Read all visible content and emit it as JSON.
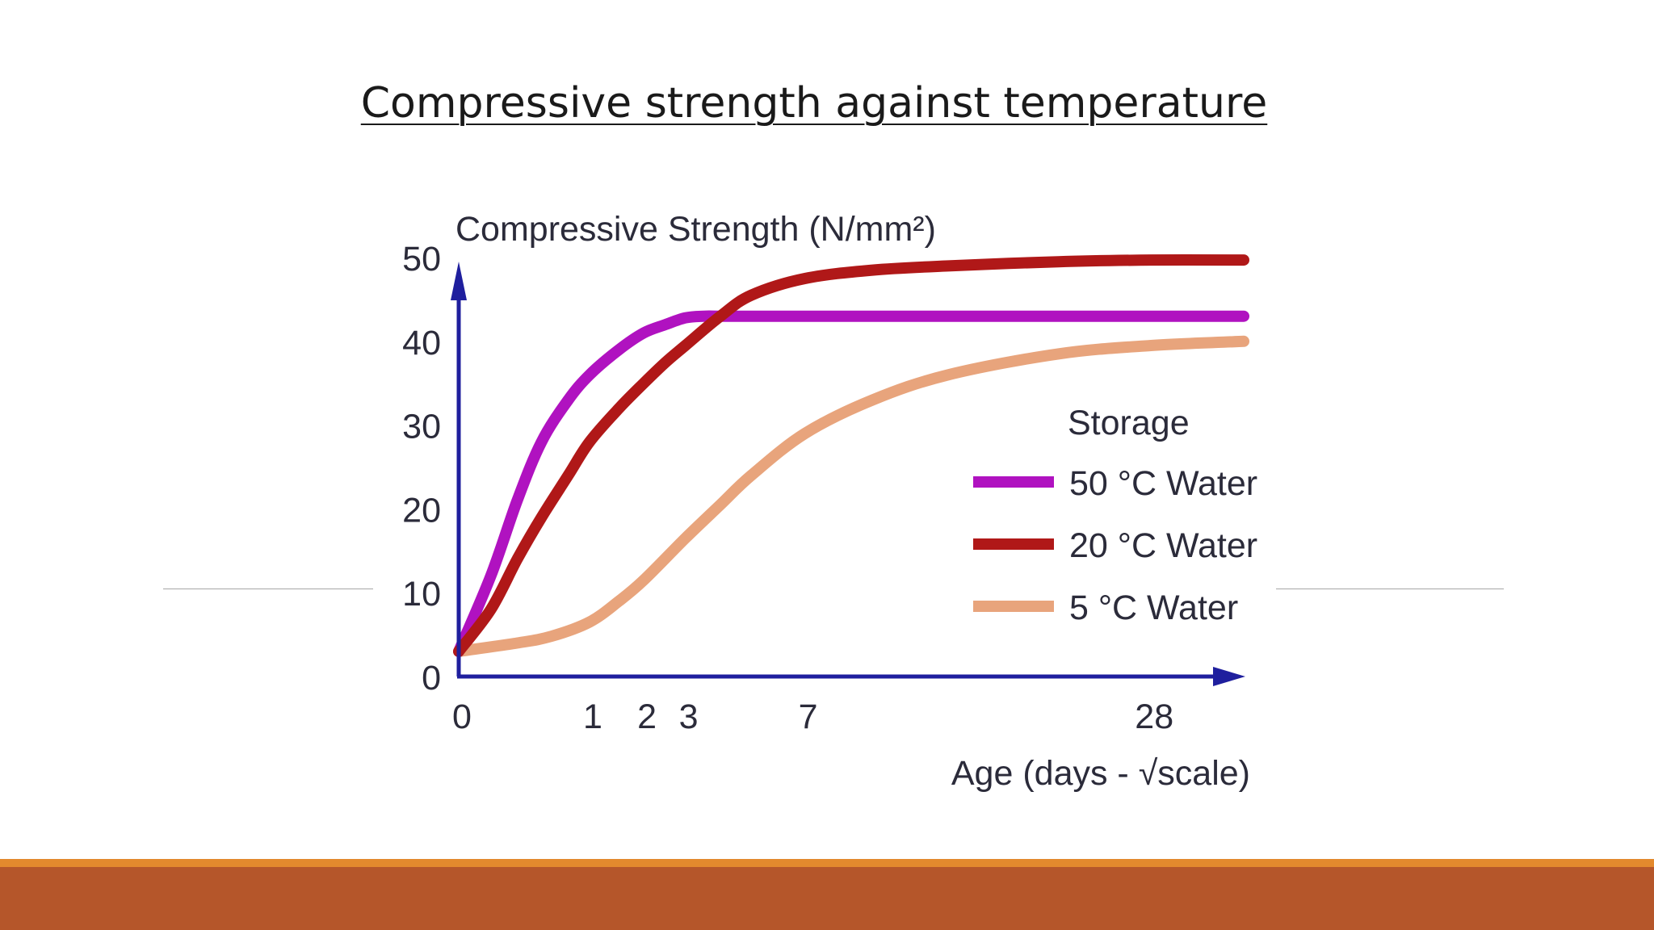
{
  "slide": {
    "title": "Compressive strength against temperature"
  },
  "colors": {
    "axis": "#1f1f9e",
    "footer_stripe": "#e3892d",
    "footer_bar": "#b5562a"
  },
  "chart_data": {
    "type": "line",
    "ylabel": "Compressive Strength (N/mm²)",
    "xlabel": "Age (days - √scale)",
    "x_scale": "sqrt",
    "xlim": [
      0,
      36
    ],
    "ylim": [
      0,
      50
    ],
    "x_ticks": [
      0,
      1,
      2,
      3,
      7,
      28
    ],
    "y_ticks": [
      0,
      10,
      20,
      30,
      40,
      50
    ],
    "legend_title": "Storage",
    "legend_position": "right",
    "grid": false,
    "series": [
      {
        "name": "50 °C Water",
        "color": "#b012c0",
        "x": [
          0,
          0.06,
          0.2,
          0.4,
          0.7,
          1,
          1.5,
          2,
          2.5,
          3,
          3.5,
          4,
          5,
          7,
          14,
          28,
          36
        ],
        "y": [
          3,
          12,
          21,
          28,
          33,
          36,
          39,
          41,
          42,
          42.8,
          43,
          43,
          43,
          43,
          43,
          43,
          43
        ]
      },
      {
        "name": "20 °C Water",
        "color": "#b01818",
        "x": [
          0,
          0.06,
          0.2,
          0.4,
          0.7,
          1,
          1.5,
          2,
          2.5,
          3,
          4,
          5,
          7,
          10,
          14,
          21,
          28,
          36
        ],
        "y": [
          3,
          8,
          14,
          19,
          24,
          28,
          32,
          35,
          37.5,
          39.5,
          43,
          45.5,
          47.5,
          48.5,
          49,
          49.5,
          49.7,
          49.7
        ]
      },
      {
        "name": "5 °C Water",
        "color": "#e8a47c",
        "x": [
          0,
          0.2,
          0.5,
          1,
          1.5,
          2,
          3,
          4,
          5,
          7,
          10,
          14,
          21,
          28,
          36
        ],
        "y": [
          3,
          4,
          4.8,
          6.5,
          9,
          11.5,
          16.5,
          20.5,
          24,
          29,
          33,
          36,
          38.5,
          39.5,
          40
        ]
      }
    ]
  }
}
